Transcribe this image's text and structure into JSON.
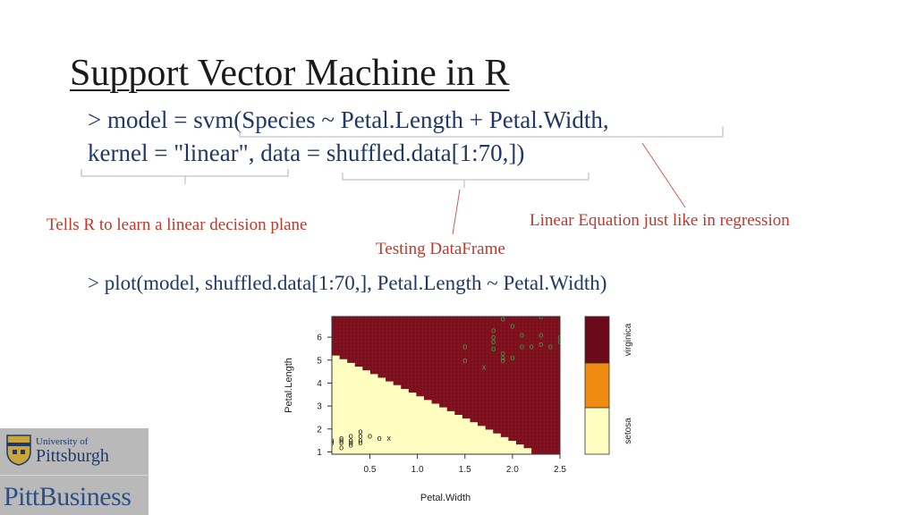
{
  "slide": {
    "title": "Support Vector Machine in R",
    "code_line1": "> model = svm(Species ~ Petal.Length + Petal.Width,",
    "code_line2": "kernel = \"linear\",  data = shuffled.data[1:70,])",
    "code_line3": "> plot(model, shuffled.data[1:70,], Petal.Length ~ Petal.Width)"
  },
  "annotations": {
    "linear_kernel": "Tells R to learn a linear decision plane",
    "testing_df": "Testing DataFrame",
    "linear_equation": "Linear Equation just like in regression",
    "color": "#c0392b"
  },
  "chart_data": {
    "type": "scatter",
    "title": "",
    "xlabel": "Petal.Width",
    "ylabel": "Petal.Length",
    "xlim": [
      0.1,
      2.5
    ],
    "ylim": [
      0.9,
      6.9
    ],
    "x_ticks": [
      "0.5",
      "1.0",
      "1.5",
      "2.0",
      "2.5"
    ],
    "y_ticks": [
      "1",
      "2",
      "3",
      "4",
      "5",
      "6"
    ],
    "decision_boundary": {
      "x": [
        0.1,
        2.2
      ],
      "y": [
        5.2,
        1.0
      ]
    },
    "regions": [
      {
        "name": "virginica",
        "color": "#7b0f1f"
      },
      {
        "name": "setosa",
        "color": "#fffdc0"
      }
    ],
    "legend": {
      "labels": [
        "virginica",
        "setosa"
      ],
      "colors": [
        "#6b0a1a",
        "#f08a10",
        "#fffdc0"
      ]
    },
    "points_setosa": [
      {
        "x": 0.2,
        "y": 1.4,
        "m": "o"
      },
      {
        "x": 0.2,
        "y": 1.5,
        "m": "o"
      },
      {
        "x": 0.2,
        "y": 1.6,
        "m": "o"
      },
      {
        "x": 0.3,
        "y": 1.3,
        "m": "o"
      },
      {
        "x": 0.3,
        "y": 1.4,
        "m": "o"
      },
      {
        "x": 0.3,
        "y": 1.5,
        "m": "o"
      },
      {
        "x": 0.3,
        "y": 1.7,
        "m": "o"
      },
      {
        "x": 0.4,
        "y": 1.4,
        "m": "o"
      },
      {
        "x": 0.4,
        "y": 1.5,
        "m": "o"
      },
      {
        "x": 0.4,
        "y": 1.7,
        "m": "o"
      },
      {
        "x": 0.4,
        "y": 1.9,
        "m": "o"
      },
      {
        "x": 0.5,
        "y": 1.7,
        "m": "o"
      },
      {
        "x": 0.6,
        "y": 1.6,
        "m": "o"
      },
      {
        "x": 0.2,
        "y": 1.2,
        "m": "o"
      },
      {
        "x": 0.1,
        "y": 1.4,
        "m": "o"
      },
      {
        "x": 0.1,
        "y": 1.5,
        "m": "o"
      },
      {
        "x": 0.7,
        "y": 1.6,
        "m": "x"
      }
    ],
    "points_virginica": [
      {
        "x": 1.5,
        "y": 5.6,
        "m": "o"
      },
      {
        "x": 1.5,
        "y": 5.0,
        "m": "o"
      },
      {
        "x": 1.8,
        "y": 6.0,
        "m": "o"
      },
      {
        "x": 1.8,
        "y": 5.8,
        "m": "o"
      },
      {
        "x": 1.8,
        "y": 5.5,
        "m": "o"
      },
      {
        "x": 1.8,
        "y": 6.3,
        "m": "o"
      },
      {
        "x": 1.9,
        "y": 5.1,
        "m": "o"
      },
      {
        "x": 1.9,
        "y": 5.0,
        "m": "o"
      },
      {
        "x": 1.9,
        "y": 5.3,
        "m": "o"
      },
      {
        "x": 2.0,
        "y": 5.1,
        "m": "o"
      },
      {
        "x": 2.0,
        "y": 6.5,
        "m": "o"
      },
      {
        "x": 2.1,
        "y": 5.6,
        "m": "o"
      },
      {
        "x": 2.1,
        "y": 6.1,
        "m": "o"
      },
      {
        "x": 2.2,
        "y": 5.6,
        "m": "o"
      },
      {
        "x": 2.3,
        "y": 5.7,
        "m": "o"
      },
      {
        "x": 2.3,
        "y": 6.1,
        "m": "o"
      },
      {
        "x": 2.4,
        "y": 5.6,
        "m": "o"
      },
      {
        "x": 2.5,
        "y": 6.0,
        "m": "o"
      },
      {
        "x": 2.5,
        "y": 5.8,
        "m": "o"
      },
      {
        "x": 2.3,
        "y": 6.9,
        "m": "o"
      },
      {
        "x": 1.9,
        "y": 6.8,
        "m": "o"
      },
      {
        "x": 1.7,
        "y": 4.7,
        "m": "x"
      }
    ]
  },
  "logo": {
    "university_line1": "University of",
    "university_line2": "Pittsburgh",
    "business": "PittBusiness",
    "text_color": "#1c3a6e"
  }
}
